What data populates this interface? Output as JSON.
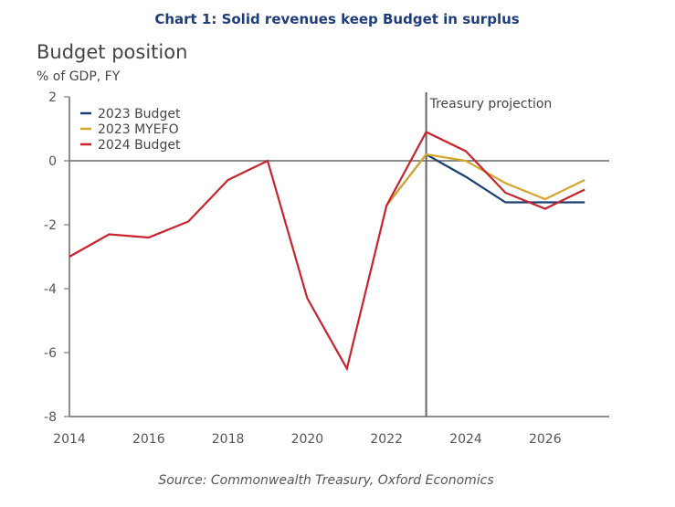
{
  "chart_data": {
    "type": "line",
    "title": "Chart 1: Solid revenues keep Budget in surplus",
    "subtitle": "Budget position",
    "ylabel": "% of GDP, FY",
    "source": "Source: Commonwealth Treasury, Oxford Economics",
    "annotation": "Treasury projection",
    "annotation_x": 2023,
    "xlim": [
      2014,
      2028
    ],
    "ylim": [
      -8,
      2
    ],
    "xticks": [
      2014,
      2016,
      2018,
      2020,
      2022,
      2024,
      2026
    ],
    "yticks": [
      2,
      0,
      -2,
      -4,
      -6,
      -8
    ],
    "legend_position": "top-left",
    "series": [
      {
        "name": "2023 Budget",
        "color": "#1b3f72",
        "x": [
          2022,
          2023,
          2024,
          2025,
          2026,
          2027
        ],
        "values": [
          -1.4,
          0.2,
          -0.5,
          -1.3,
          -1.3,
          -1.3
        ]
      },
      {
        "name": "2023 MYEFO",
        "color": "#d4a72c",
        "x": [
          2022,
          2023,
          2024,
          2025,
          2026,
          2027
        ],
        "values": [
          -1.4,
          0.2,
          0.0,
          -0.7,
          -1.2,
          -0.6
        ]
      },
      {
        "name": "2024 Budget",
        "color": "#c8232c",
        "x": [
          2014,
          2015,
          2016,
          2017,
          2018,
          2019,
          2020,
          2021,
          2022,
          2023,
          2024,
          2025,
          2026,
          2027
        ],
        "values": [
          -3.0,
          -2.3,
          -2.4,
          -1.9,
          -0.6,
          0.0,
          -4.3,
          -6.5,
          -1.4,
          0.9,
          0.3,
          -1.0,
          -1.5,
          -0.9
        ]
      }
    ]
  }
}
